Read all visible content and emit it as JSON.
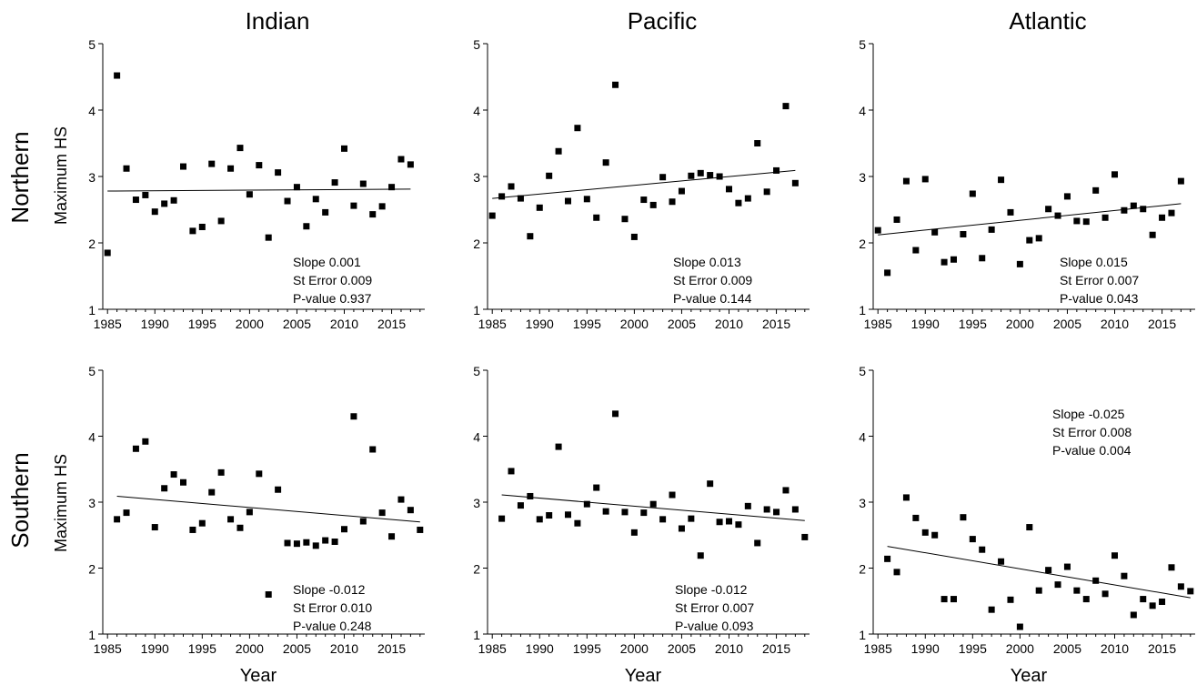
{
  "column_titles": [
    "Indian",
    "Pacific",
    "Atlantic"
  ],
  "row_titles": [
    "Northern",
    "Southern"
  ],
  "ylabel": "Maximum HS",
  "xlabel": "Year",
  "stat_labels": {
    "slope": "Slope",
    "st_error": "St Error",
    "p_value": "P-value"
  },
  "colors": {
    "marker": "#000000",
    "axis": "#000000",
    "trend": "#000000"
  },
  "chart_data": [
    {
      "type": "scatter",
      "hemisphere": "Northern",
      "ocean": "Indian",
      "xlim": [
        1984.5,
        2018.5
      ],
      "ylim": [
        1,
        5
      ],
      "xticks": [
        1985,
        1990,
        1995,
        2000,
        2005,
        2010,
        2015
      ],
      "yticks": [
        1,
        2,
        3,
        4,
        5
      ],
      "x": [
        1985,
        1986,
        1987,
        1988,
        1989,
        1990,
        1991,
        1992,
        1993,
        1994,
        1995,
        1996,
        1997,
        1998,
        1999,
        2000,
        2001,
        2002,
        2003,
        2004,
        2005,
        2006,
        2007,
        2008,
        2009,
        2010,
        2011,
        2012,
        2013,
        2014,
        2015,
        2016,
        2017
      ],
      "y": [
        1.85,
        4.52,
        3.12,
        2.65,
        2.72,
        2.47,
        2.59,
        2.64,
        3.15,
        2.18,
        2.24,
        3.19,
        2.33,
        3.12,
        3.43,
        2.73,
        3.17,
        2.08,
        3.06,
        2.63,
        2.84,
        2.25,
        2.66,
        2.46,
        2.91,
        3.42,
        2.56,
        2.89,
        2.43,
        2.55,
        2.84,
        3.26,
        3.18
      ],
      "trend": {
        "x": [
          1985,
          2017
        ],
        "y": [
          2.78,
          2.81
        ]
      },
      "stats": {
        "slope": "0.001",
        "st_error": "0.009",
        "p_value": "0.937"
      }
    },
    {
      "type": "scatter",
      "hemisphere": "Northern",
      "ocean": "Pacific",
      "xlim": [
        1984.5,
        2018.5
      ],
      "ylim": [
        1,
        5
      ],
      "xticks": [
        1985,
        1990,
        1995,
        2000,
        2005,
        2010,
        2015
      ],
      "yticks": [
        1,
        2,
        3,
        4,
        5
      ],
      "x": [
        1985,
        1986,
        1987,
        1988,
        1989,
        1990,
        1991,
        1992,
        1993,
        1994,
        1995,
        1996,
        1997,
        1998,
        1999,
        2000,
        2001,
        2002,
        2003,
        2004,
        2005,
        2006,
        2007,
        2008,
        2009,
        2010,
        2011,
        2012,
        2013,
        2014,
        2015,
        2016,
        2017
      ],
      "y": [
        2.41,
        2.7,
        2.85,
        2.67,
        2.1,
        2.53,
        3.01,
        3.38,
        2.63,
        3.73,
        2.66,
        2.38,
        3.21,
        4.38,
        2.36,
        2.09,
        2.65,
        2.57,
        2.99,
        2.62,
        2.78,
        3.01,
        3.05,
        3.02,
        3.0,
        2.81,
        2.6,
        2.67,
        3.5,
        2.77,
        3.09,
        4.06,
        2.9
      ],
      "trend": {
        "x": [
          1985,
          2017
        ],
        "y": [
          2.67,
          3.09
        ]
      },
      "stats": {
        "slope": "0.013",
        "st_error": "0.009",
        "p_value": "0.144"
      }
    },
    {
      "type": "scatter",
      "hemisphere": "Northern",
      "ocean": "Atlantic",
      "xlim": [
        1984.5,
        2018.5
      ],
      "ylim": [
        1,
        5
      ],
      "xticks": [
        1985,
        1990,
        1995,
        2000,
        2005,
        2010,
        2015
      ],
      "yticks": [
        1,
        2,
        3,
        4,
        5
      ],
      "x": [
        1985,
        1986,
        1987,
        1988,
        1989,
        1990,
        1991,
        1992,
        1993,
        1994,
        1995,
        1996,
        1997,
        1998,
        1999,
        2000,
        2001,
        2002,
        2003,
        2004,
        2005,
        2006,
        2007,
        2008,
        2009,
        2010,
        2011,
        2012,
        2013,
        2014,
        2015,
        2016,
        2017
      ],
      "y": [
        2.19,
        1.55,
        2.35,
        2.93,
        1.89,
        2.96,
        2.16,
        1.71,
        1.75,
        2.13,
        2.74,
        1.77,
        2.2,
        2.95,
        2.46,
        1.68,
        2.04,
        2.07,
        2.51,
        2.41,
        2.7,
        2.33,
        2.32,
        2.79,
        2.38,
        3.03,
        2.49,
        2.56,
        2.51,
        2.12,
        2.38,
        2.45,
        2.93
      ],
      "trend": {
        "x": [
          1985,
          2017
        ],
        "y": [
          2.12,
          2.59
        ]
      },
      "stats": {
        "slope": "0.015",
        "st_error": "0.007",
        "p_value": "0.043"
      }
    },
    {
      "type": "scatter",
      "hemisphere": "Southern",
      "ocean": "Indian",
      "xlim": [
        1984.5,
        2018.5
      ],
      "ylim": [
        1,
        5
      ],
      "xticks": [
        1985,
        1990,
        1995,
        2000,
        2005,
        2010,
        2015
      ],
      "yticks": [
        1,
        2,
        3,
        4,
        5
      ],
      "x": [
        1986,
        1987,
        1988,
        1989,
        1990,
        1991,
        1992,
        1993,
        1994,
        1995,
        1996,
        1997,
        1998,
        1999,
        2000,
        2001,
        2002,
        2003,
        2004,
        2005,
        2006,
        2007,
        2008,
        2009,
        2010,
        2011,
        2012,
        2013,
        2014,
        2015,
        2016,
        2017,
        2018
      ],
      "y": [
        2.74,
        2.84,
        3.81,
        3.92,
        2.62,
        3.21,
        3.42,
        3.3,
        2.58,
        2.68,
        3.15,
        3.45,
        2.74,
        2.61,
        2.85,
        3.43,
        1.6,
        3.19,
        2.38,
        2.37,
        2.39,
        2.34,
        2.42,
        2.4,
        2.59,
        4.3,
        2.71,
        3.8,
        2.84,
        2.48,
        3.04,
        2.88,
        2.58
      ],
      "trend": {
        "x": [
          1986,
          2018
        ],
        "y": [
          3.09,
          2.7
        ]
      },
      "stats": {
        "slope": "-0.012",
        "st_error": "0.010",
        "p_value": "0.248"
      }
    },
    {
      "type": "scatter",
      "hemisphere": "Southern",
      "ocean": "Pacific",
      "xlim": [
        1984.5,
        2018.5
      ],
      "ylim": [
        1,
        5
      ],
      "xticks": [
        1985,
        1990,
        1995,
        2000,
        2005,
        2010,
        2015
      ],
      "yticks": [
        1,
        2,
        3,
        4,
        5
      ],
      "x": [
        1986,
        1987,
        1988,
        1989,
        1990,
        1991,
        1992,
        1993,
        1994,
        1995,
        1996,
        1997,
        1998,
        1999,
        2000,
        2001,
        2002,
        2003,
        2004,
        2005,
        2006,
        2007,
        2008,
        2009,
        2010,
        2011,
        2012,
        2013,
        2014,
        2015,
        2016,
        2017,
        2018
      ],
      "y": [
        2.75,
        3.47,
        2.95,
        3.09,
        2.74,
        2.8,
        3.84,
        2.81,
        2.68,
        2.97,
        3.22,
        2.86,
        4.34,
        2.85,
        2.54,
        2.84,
        2.97,
        2.74,
        3.11,
        2.6,
        2.75,
        2.19,
        3.28,
        2.7,
        2.71,
        2.66,
        2.94,
        2.38,
        2.89,
        2.85,
        3.18,
        2.89,
        2.47
      ],
      "trend": {
        "x": [
          1986,
          2018
        ],
        "y": [
          3.11,
          2.72
        ]
      },
      "stats": {
        "slope": "-0.012",
        "st_error": "0.007",
        "p_value": "0.093"
      }
    },
    {
      "type": "scatter",
      "hemisphere": "Southern",
      "ocean": "Atlantic",
      "xlim": [
        1984.5,
        2018.5
      ],
      "ylim": [
        1,
        5
      ],
      "xticks": [
        1985,
        1990,
        1995,
        2000,
        2005,
        2010,
        2015
      ],
      "yticks": [
        1,
        2,
        3,
        4,
        5
      ],
      "x": [
        1986,
        1987,
        1988,
        1989,
        1990,
        1991,
        1992,
        1993,
        1994,
        1995,
        1996,
        1997,
        1998,
        1999,
        2000,
        2001,
        2002,
        2003,
        2004,
        2005,
        2006,
        2007,
        2008,
        2009,
        2010,
        2011,
        2012,
        2013,
        2014,
        2015,
        2016,
        2017,
        2018
      ],
      "y": [
        2.14,
        1.94,
        3.07,
        2.76,
        2.54,
        2.5,
        1.53,
        1.53,
        2.77,
        2.44,
        2.28,
        1.37,
        2.1,
        1.52,
        1.11,
        2.62,
        1.66,
        1.97,
        1.75,
        2.02,
        1.66,
        1.53,
        1.81,
        1.61,
        2.19,
        1.88,
        1.29,
        1.53,
        1.43,
        1.49,
        2.01,
        1.72,
        1.65
      ],
      "trend": {
        "x": [
          1986,
          2018
        ],
        "y": [
          2.33,
          1.55
        ]
      },
      "stats": {
        "slope": "-0.025",
        "st_error": "0.008",
        "p_value": "0.004"
      }
    }
  ]
}
